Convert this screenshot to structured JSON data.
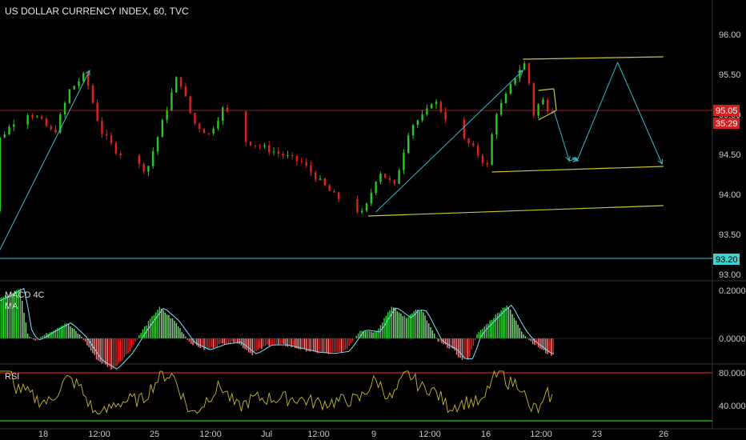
{
  "title": "US DOLLAR CURRENCY INDEX, 60, TVC",
  "colors": {
    "background": "#000000",
    "up": "#22cc22",
    "down": "#e02020",
    "drawing_yellow": "#c8c832",
    "arrow_cyan": "#38b8cc",
    "current_price_line": "#c03030",
    "support_line": "#3fd0d0",
    "macd_pos": "#33dd33",
    "macd_neg": "#ee2222",
    "macd_ma": "#7fe0ff",
    "rsi_line": "#c8b832",
    "rsi_upper": "#cc2222",
    "rsi_lower": "#22cc22"
  },
  "x_axis": {
    "ticks": [
      "18",
      "12:00",
      "25",
      "12:00",
      "Jul",
      "12:00",
      "9",
      "12:00",
      "16",
      "12:00",
      "23",
      "26"
    ]
  },
  "price_badges": {
    "current": "95.05",
    "countdown": "35:29",
    "support": "93.20"
  },
  "panel_labels": {
    "macd_line1": "MACD 4C",
    "macd_line2": "MA",
    "rsi": "RSI"
  },
  "chart_data": [
    {
      "type": "candlestick",
      "panel": "price",
      "ylim": [
        93.0,
        96.0
      ],
      "y_ticks": [
        "96.00",
        "95.50",
        "95.00",
        "94.50",
        "94.00",
        "93.50",
        "93.00"
      ],
      "current_price": 95.05,
      "support_level": 93.2,
      "key_points": [
        {
          "x": "Jun 14",
          "y": 93.6
        },
        {
          "x": "Jun 15",
          "y": 93.2
        },
        {
          "x": "Jun 15 12:00",
          "y": 94.7
        },
        {
          "x": "Jun 17",
          "y": 95.05
        },
        {
          "x": "Jun 18",
          "y": 94.95
        },
        {
          "x": "Jun 19",
          "y": 94.75
        },
        {
          "x": "Jun 20",
          "y": 95.3
        },
        {
          "x": "Jun 21",
          "y": 95.5
        },
        {
          "x": "Jun 22",
          "y": 94.8
        },
        {
          "x": "Jun 23",
          "y": 94.55
        },
        {
          "x": "Jun 25",
          "y": 94.3
        },
        {
          "x": "Jun 26",
          "y": 94.9
        },
        {
          "x": "Jun 27",
          "y": 95.5
        },
        {
          "x": "Jun 28",
          "y": 94.9
        },
        {
          "x": "Jun 29",
          "y": 94.75
        },
        {
          "x": "Jun 30",
          "y": 95.1
        },
        {
          "x": "Jul 1",
          "y": 94.7
        },
        {
          "x": "Jul 3",
          "y": 94.55
        },
        {
          "x": "Jul 5",
          "y": 94.4
        },
        {
          "x": "Jul 7",
          "y": 94.0
        },
        {
          "x": "Jul 9",
          "y": 93.75
        },
        {
          "x": "Jul 10",
          "y": 94.3
        },
        {
          "x": "Jul 11",
          "y": 94.1
        },
        {
          "x": "Jul 12",
          "y": 94.85
        },
        {
          "x": "Jul 13",
          "y": 95.0
        },
        {
          "x": "Jul 13 12:00",
          "y": 95.2
        },
        {
          "x": "Jul 15",
          "y": 94.75
        },
        {
          "x": "Jul 16",
          "y": 94.6
        },
        {
          "x": "Jul 17",
          "y": 94.35
        },
        {
          "x": "Jul 17 12:00",
          "y": 95.0
        },
        {
          "x": "Jul 18",
          "y": 95.15
        },
        {
          "x": "Jul 19",
          "y": 95.55
        },
        {
          "x": "Jul 19 12:00",
          "y": 95.65
        },
        {
          "x": "Jul 20",
          "y": 95.0
        },
        {
          "x": "Jul 20 12:00",
          "y": 95.2
        },
        {
          "x": "Jul 21",
          "y": 95.05
        }
      ]
    },
    {
      "type": "histogram",
      "panel": "MACD 4C",
      "ylim": [
        -0.1,
        0.33
      ],
      "y_ticks": [
        "0.2000",
        "0.0000"
      ],
      "approx_range": [
        -0.08,
        0.3
      ]
    },
    {
      "type": "line",
      "panel": "RSI",
      "ylim": [
        25,
        85
      ],
      "y_ticks": [
        "80.0000",
        "40.0000"
      ],
      "upper_band": 80,
      "lower_band": 20
    }
  ]
}
